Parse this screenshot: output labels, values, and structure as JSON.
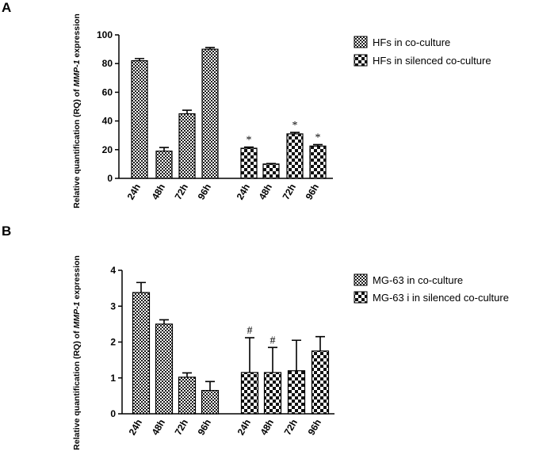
{
  "chart_data": [
    {
      "panel": "A",
      "type": "bar",
      "ylabel_pre": "Relative quantification  (RQ) of ",
      "ylabel_gene": "MMP-1",
      "ylabel_post": " expression",
      "ylim": [
        0,
        100
      ],
      "yticks": [
        0,
        20,
        40,
        60,
        80,
        100
      ],
      "series": [
        {
          "name": "HFs in co-culture",
          "pattern": "small-check",
          "categories": [
            "24h",
            "48h",
            "72h",
            "96h"
          ],
          "values": [
            82,
            19,
            45,
            90
          ],
          "errors": [
            1.5,
            2.5,
            2.5,
            1.2
          ],
          "annotations": [
            "",
            "",
            "",
            ""
          ]
        },
        {
          "name": "HFs in silenced co-culture",
          "pattern": "large-check",
          "categories": [
            "24h",
            "48h",
            "72h",
            "96h"
          ],
          "values": [
            21,
            10,
            31,
            22.5
          ],
          "errors": [
            0.8,
            0.3,
            1.0,
            1.0
          ],
          "annotations": [
            "*",
            "",
            "*",
            "*"
          ]
        }
      ]
    },
    {
      "panel": "B",
      "type": "bar",
      "ylabel_pre": "Relative quantification  (RQ) of ",
      "ylabel_gene": "MMP-1",
      "ylabel_post": " expression",
      "ylim": [
        0,
        4
      ],
      "yticks": [
        0,
        1,
        2,
        3,
        4
      ],
      "series": [
        {
          "name": "MG-63 in co-culture",
          "pattern": "small-check",
          "categories": [
            "24h",
            "48h",
            "72h",
            "96h"
          ],
          "values": [
            3.38,
            2.5,
            1.02,
            0.65
          ],
          "errors": [
            0.28,
            0.12,
            0.12,
            0.25
          ],
          "annotations": [
            "",
            "",
            "",
            ""
          ]
        },
        {
          "name": "MG-63 i in silenced co-culture",
          "pattern": "large-check",
          "categories": [
            "24h",
            "48h",
            "72h",
            "96h"
          ],
          "values": [
            1.15,
            1.15,
            1.2,
            1.75
          ],
          "errors": [
            0.97,
            0.7,
            0.85,
            0.4
          ],
          "annotations": [
            "#",
            "#",
            "",
            ""
          ]
        }
      ]
    }
  ]
}
